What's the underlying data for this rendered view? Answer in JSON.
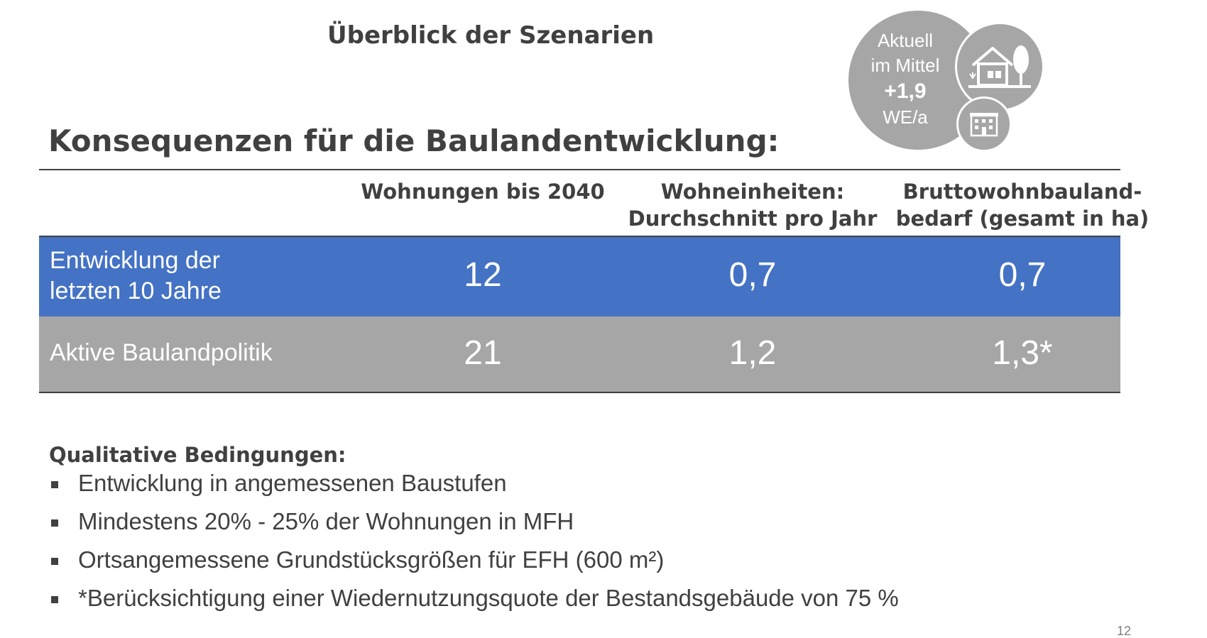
{
  "slide": {
    "subtitle": "Überblick der Szenarien",
    "title": "Konsequenzen für die Baulandentwicklung:",
    "page_number": "12"
  },
  "badge": {
    "line1": "Aktuell",
    "line2": "im Mittel",
    "value": "+1,9",
    "unit": "WE/a",
    "icons": [
      "house-with-tree-icon",
      "apartment-building-icon"
    ],
    "color": "#a6a6a6"
  },
  "table": {
    "headers": [
      {
        "line1": "",
        "line2": ""
      },
      {
        "line1": "Wohnungen bis 2040",
        "line2": ""
      },
      {
        "line1": "Wohneinheiten:",
        "line2": "Durchschnitt pro Jahr"
      },
      {
        "line1": "Bruttowohnbauland-",
        "line2": "bedarf (gesamt in ha)"
      }
    ],
    "rows": [
      {
        "label_line1": "Entwicklung der",
        "label_line2": "letzten 10 Jahre",
        "values": [
          "12",
          "0,7",
          "0,7"
        ],
        "color": "#4472c4"
      },
      {
        "label_line1": "Aktive Baulandpolitik",
        "label_line2": "",
        "values": [
          "21",
          "1,2",
          "1,3*"
        ],
        "color": "#a6a6a6"
      }
    ]
  },
  "conditions": {
    "heading": "Qualitative Bedingungen:",
    "items": [
      "Entwicklung in angemessenen Baustufen",
      "Mindestens 20% - 25% der Wohnungen in MFH",
      "Ortsangemessene Grundstücksgrößen für EFH (600 m²)",
      "*Berücksichtigung einer Wiedernutzungsquote der Bestandsgebäude von 75 %"
    ]
  }
}
